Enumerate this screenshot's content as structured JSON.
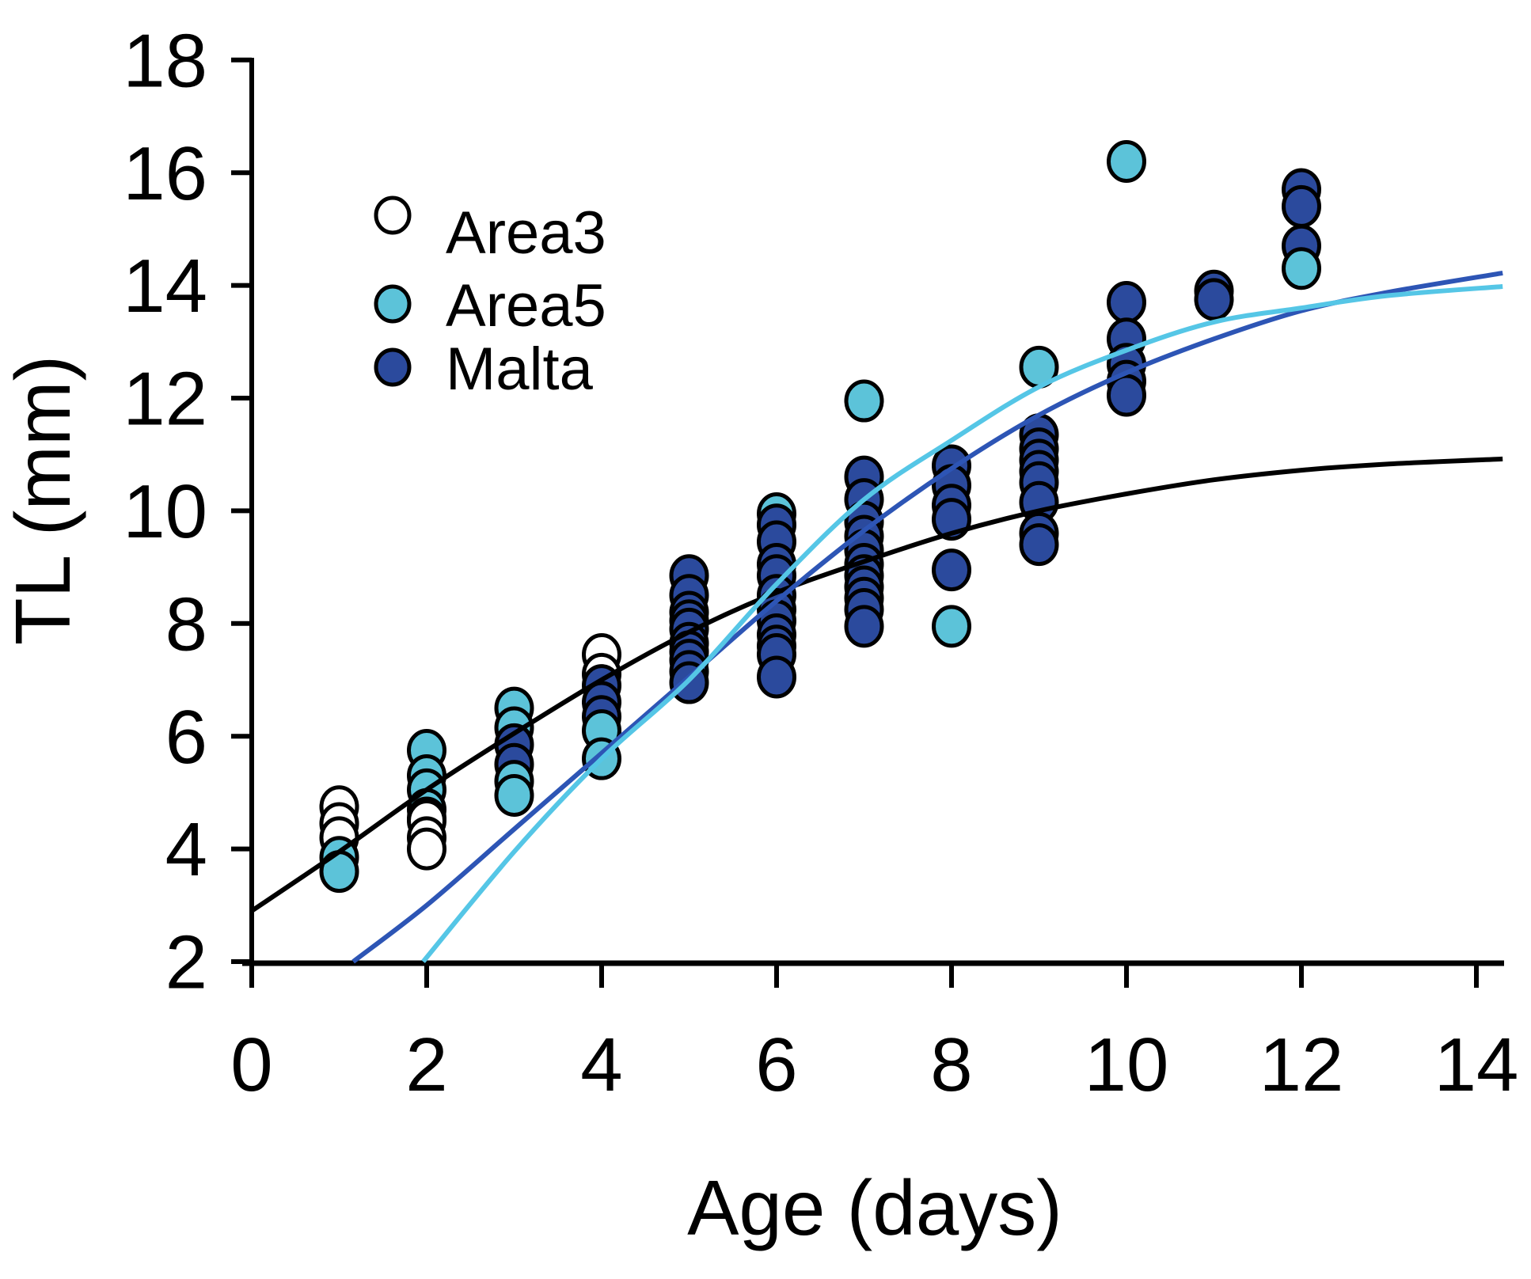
{
  "chart_data": {
    "type": "scatter",
    "title": "",
    "xlabel": "Age (days)",
    "ylabel": "TL (mm)",
    "xlim": [
      0,
      14
    ],
    "ylim": [
      2,
      18
    ],
    "xticks": [
      0,
      2,
      4,
      6,
      8,
      10,
      12,
      14
    ],
    "yticks": [
      2,
      4,
      6,
      8,
      10,
      12,
      14,
      16,
      18
    ],
    "grid": false,
    "legend_position": "upper-left-inside",
    "series": [
      {
        "name": "Area3",
        "color": "#ffffff",
        "marker": "circle-open",
        "points": [
          [
            1,
            4.75
          ],
          [
            1,
            4.45
          ],
          [
            1,
            4.2
          ],
          [
            2,
            4.5
          ],
          [
            2,
            4.2
          ],
          [
            2,
            4.0
          ],
          [
            4,
            7.45
          ],
          [
            4,
            7.1
          ]
        ]
      },
      {
        "name": "Area5",
        "color": "#5cc3d9",
        "marker": "circle-filled",
        "points": [
          [
            1,
            3.85
          ],
          [
            1,
            3.6
          ],
          [
            2,
            5.75
          ],
          [
            2,
            5.3
          ],
          [
            2,
            5.05
          ],
          [
            2,
            4.7
          ],
          [
            2,
            4.55
          ],
          [
            3,
            6.5
          ],
          [
            3,
            6.15
          ],
          [
            3,
            5.2
          ],
          [
            3,
            4.95
          ],
          [
            4,
            6.1
          ],
          [
            4,
            5.6
          ],
          [
            6,
            9.95
          ],
          [
            7,
            11.95
          ],
          [
            8,
            7.95
          ],
          [
            9,
            12.55
          ],
          [
            10,
            16.2
          ],
          [
            12,
            14.3
          ]
        ]
      },
      {
        "name": "Malta",
        "color": "#2b4a9d",
        "marker": "circle-filled",
        "points": [
          [
            3,
            5.85
          ],
          [
            3,
            5.5
          ],
          [
            4,
            6.9
          ],
          [
            4,
            6.6
          ],
          [
            4,
            6.35
          ],
          [
            5,
            8.85
          ],
          [
            5,
            8.5
          ],
          [
            5,
            8.2
          ],
          [
            5,
            8.05
          ],
          [
            5,
            7.9
          ],
          [
            5,
            7.65
          ],
          [
            5,
            7.5
          ],
          [
            5,
            7.35
          ],
          [
            5,
            7.15
          ],
          [
            5,
            6.95
          ],
          [
            6,
            9.75
          ],
          [
            6,
            9.45
          ],
          [
            6,
            9.05
          ],
          [
            6,
            8.85
          ],
          [
            6,
            8.5
          ],
          [
            6,
            8.25
          ],
          [
            6,
            8.05
          ],
          [
            6,
            7.8
          ],
          [
            6,
            7.6
          ],
          [
            6,
            7.45
          ],
          [
            6,
            7.05
          ],
          [
            7,
            10.6
          ],
          [
            7,
            10.2
          ],
          [
            7,
            9.8
          ],
          [
            7,
            9.55
          ],
          [
            7,
            9.3
          ],
          [
            7,
            9.05
          ],
          [
            7,
            8.85
          ],
          [
            7,
            8.65
          ],
          [
            7,
            8.45
          ],
          [
            7,
            8.25
          ],
          [
            7,
            7.95
          ],
          [
            8,
            10.8
          ],
          [
            8,
            10.45
          ],
          [
            8,
            10.1
          ],
          [
            8,
            9.85
          ],
          [
            8,
            8.95
          ],
          [
            9,
            11.35
          ],
          [
            9,
            11.1
          ],
          [
            9,
            10.9
          ],
          [
            9,
            10.7
          ],
          [
            9,
            10.5
          ],
          [
            9,
            10.15
          ],
          [
            9,
            9.6
          ],
          [
            9,
            9.4
          ],
          [
            10,
            13.7
          ],
          [
            10,
            13.05
          ],
          [
            10,
            12.6
          ],
          [
            10,
            12.3
          ],
          [
            10,
            12.05
          ],
          [
            11,
            13.9
          ],
          [
            11,
            13.75
          ],
          [
            12,
            15.7
          ],
          [
            12,
            15.4
          ],
          [
            12,
            14.7
          ]
        ]
      }
    ],
    "fit_curves": [
      {
        "name": "Area3 fit",
        "color": "#000000",
        "anchors": [
          [
            0,
            2.9
          ],
          [
            1,
            3.95
          ],
          [
            2,
            5.05
          ],
          [
            3,
            6.05
          ],
          [
            4,
            7.0
          ],
          [
            5,
            7.85
          ],
          [
            6,
            8.55
          ],
          [
            7,
            9.1
          ],
          [
            8,
            9.6
          ],
          [
            9,
            10.0
          ],
          [
            10,
            10.3
          ],
          [
            11,
            10.55
          ],
          [
            12,
            10.72
          ],
          [
            13,
            10.83
          ],
          [
            14.3,
            10.92
          ]
        ]
      },
      {
        "name": "Malta fit",
        "color": "#2d55b5",
        "anchors": [
          [
            1.16,
            2.0
          ],
          [
            2,
            3.0
          ],
          [
            3,
            4.35
          ],
          [
            4,
            5.7
          ],
          [
            5,
            7.05
          ],
          [
            6,
            8.4
          ],
          [
            7,
            9.65
          ],
          [
            8,
            10.75
          ],
          [
            9,
            11.7
          ],
          [
            10,
            12.45
          ],
          [
            11,
            13.05
          ],
          [
            12,
            13.55
          ],
          [
            13,
            13.88
          ],
          [
            14.3,
            14.22
          ]
        ]
      },
      {
        "name": "Area5 fit",
        "color": "#55c6e6",
        "anchors": [
          [
            1.96,
            2.0
          ],
          [
            3,
            3.95
          ],
          [
            4,
            5.6
          ],
          [
            5,
            7.0
          ],
          [
            6,
            8.7
          ],
          [
            7,
            10.2
          ],
          [
            8,
            11.25
          ],
          [
            9,
            12.2
          ],
          [
            10,
            12.85
          ],
          [
            11,
            13.35
          ],
          [
            12,
            13.6
          ],
          [
            13,
            13.82
          ],
          [
            14.3,
            13.98
          ]
        ]
      }
    ],
    "legend": [
      "Area3",
      "Area5",
      "Malta"
    ]
  }
}
